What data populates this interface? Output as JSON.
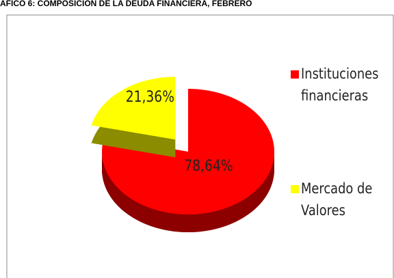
{
  "chart_data": {
    "type": "pie3d",
    "title": "ÁFICO 6: COMPOSICIÓN DE LA DEUDA FINANCIERA, FEBRERO",
    "categories": [
      "Instituciones financieras",
      "Mercado de Valores"
    ],
    "values": [
      78.64,
      21.36
    ],
    "value_labels": [
      "78,64%",
      "21,36%"
    ],
    "colors": [
      "#ff0000",
      "#ffff00"
    ],
    "legend": "right"
  }
}
